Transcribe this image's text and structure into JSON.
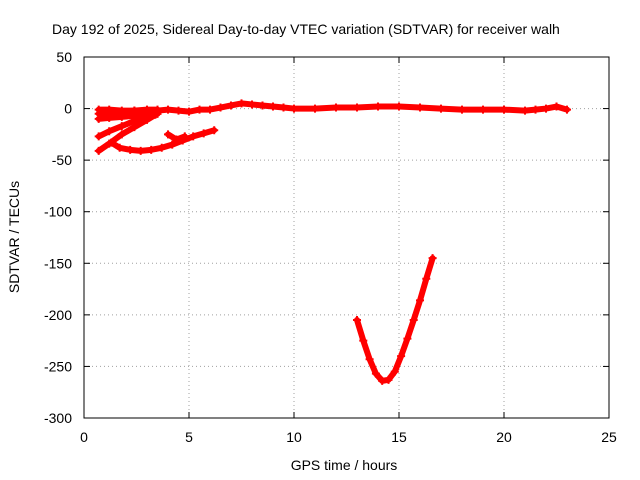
{
  "chart_data": {
    "type": "scatter",
    "title": "Day 192 of 2025, Sidereal Day-to-day VTEC variation (SDTVAR) for receiver walh",
    "xlabel": "GPS time / hours",
    "ylabel": "SDTVAR / TECUs",
    "xlim": [
      0,
      25
    ],
    "ylim": [
      -300,
      50
    ],
    "xticks": [
      0,
      5,
      10,
      15,
      20,
      25
    ],
    "yticks": [
      -300,
      -250,
      -200,
      -150,
      -100,
      -50,
      0,
      50
    ],
    "grid": true,
    "legend": "none",
    "series_color": "#ff0000",
    "series": [
      {
        "x": [
          0.7,
          1.2,
          1.8,
          2.4,
          3.0,
          3.5,
          4.0,
          4.5,
          5.0,
          5.5,
          6.0,
          6.5,
          7.0,
          7.5,
          8.0,
          8.5,
          9.0,
          9.5,
          10.0,
          11.0,
          12.0,
          13.0,
          14.0,
          15.0,
          16.0,
          17.0,
          18.0,
          19.0,
          20.0,
          21.0,
          21.5,
          22.0,
          22.5,
          23.0
        ],
        "y": [
          -1,
          -1,
          -2,
          -2,
          -3,
          -2,
          -1,
          -2,
          -3,
          -1,
          -1,
          1,
          3,
          5,
          4,
          3,
          2,
          1,
          0,
          0,
          1,
          1,
          2,
          2,
          1,
          0,
          -1,
          -1,
          -1,
          -2,
          -1,
          0,
          2,
          -1
        ]
      },
      {
        "x": [
          0.7,
          1.2,
          1.8,
          2.4,
          3.0,
          3.5
        ],
        "y": [
          -5,
          -4,
          -3,
          -2,
          -1,
          -1
        ]
      },
      {
        "x": [
          0.7,
          1.2,
          1.8,
          2.4,
          3.0,
          3.5
        ],
        "y": [
          -10,
          -9,
          -8,
          -7,
          -6,
          -5
        ]
      },
      {
        "x": [
          0.7,
          1.2,
          1.8,
          2.4,
          3.0,
          3.5
        ],
        "y": [
          -27,
          -22,
          -17,
          -12,
          -8,
          -5
        ]
      },
      {
        "x": [
          0.7,
          1.2,
          1.8,
          2.4,
          3.0,
          3.4
        ],
        "y": [
          -41,
          -34,
          -25,
          -18,
          -11,
          -6
        ]
      },
      {
        "x": [
          1.3,
          1.7,
          2.2,
          2.7,
          3.2,
          3.7,
          4.2,
          4.7,
          5.2,
          5.7,
          6.2
        ],
        "y": [
          -33,
          -38,
          -40,
          -41,
          -40,
          -38,
          -35,
          -31,
          -27,
          -24,
          -21
        ]
      },
      {
        "x": [
          4.0,
          4.4,
          4.8
        ],
        "y": [
          -25,
          -30,
          -27
        ]
      },
      {
        "x": [
          13.0,
          13.3,
          13.6,
          13.9,
          14.2,
          14.5,
          14.8,
          15.1,
          15.4,
          15.7,
          16.0,
          16.3,
          16.6
        ],
        "y": [
          -205,
          -225,
          -243,
          -257,
          -264,
          -263,
          -255,
          -240,
          -223,
          -205,
          -186,
          -165,
          -145
        ]
      }
    ]
  }
}
